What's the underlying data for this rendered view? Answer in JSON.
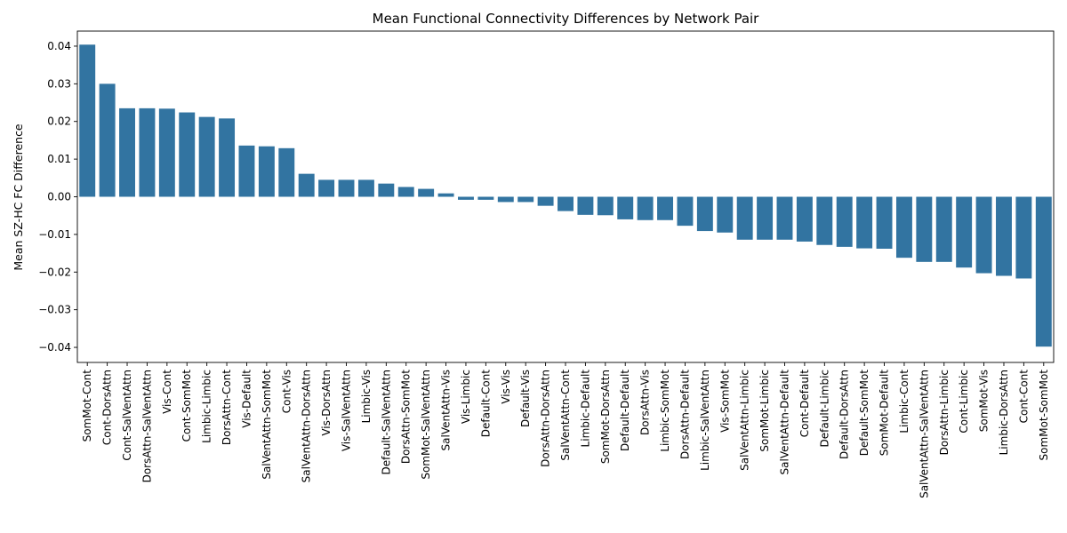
{
  "chart_data": {
    "type": "bar",
    "title": "Mean Functional Connectivity Differences by Network Pair",
    "xlabel": "",
    "ylabel": "Mean SZ-HC FC Difference",
    "ylim": [
      -0.044,
      0.044
    ],
    "yticks": [
      0.04,
      0.03,
      0.02,
      0.01,
      0.0,
      -0.01,
      -0.02,
      -0.03,
      -0.04
    ],
    "ytick_labels": [
      "0.04",
      "0.03",
      "0.02",
      "0.01",
      "0.00",
      "−0.01",
      "−0.02",
      "−0.03",
      "−0.04"
    ],
    "bar_color": "#3274a1",
    "grid": false,
    "categories": [
      "SomMot-Cont",
      "Cont-DorsAttn",
      "Cont-SalVentAttn",
      "DorsAttn-SalVentAttn",
      "Vis-Cont",
      "Cont-SomMot",
      "Limbic-Limbic",
      "DorsAttn-Cont",
      "Vis-Default",
      "SalVentAttn-SomMot",
      "Cont-Vis",
      "SalVentAttn-DorsAttn",
      "Vis-DorsAttn",
      "Vis-SalVentAttn",
      "Limbic-Vis",
      "Default-SalVentAttn",
      "DorsAttn-SomMot",
      "SomMot-SalVentAttn",
      "SalVentAttn-Vis",
      "Vis-Limbic",
      "Default-Cont",
      "Vis-Vis",
      "Default-Vis",
      "DorsAttn-DorsAttn",
      "SalVentAttn-Cont",
      "Limbic-Default",
      "SomMot-DorsAttn",
      "Default-Default",
      "DorsAttn-Vis",
      "Limbic-SomMot",
      "DorsAttn-Default",
      "Limbic-SalVentAttn",
      "Vis-SomMot",
      "SalVentAttn-Limbic",
      "SomMot-Limbic",
      "SalVentAttn-Default",
      "Cont-Default",
      "Default-Limbic",
      "Default-DorsAttn",
      "Default-SomMot",
      "SomMot-Default",
      "Limbic-Cont",
      "SalVentAttn-SalVentAttn",
      "DorsAttn-Limbic",
      "Cont-Limbic",
      "SomMot-Vis",
      "Limbic-DorsAttn",
      "Cont-Cont",
      "SomMot-SomMot"
    ],
    "values": [
      0.0404,
      0.03,
      0.0235,
      0.0235,
      0.0234,
      0.0224,
      0.0212,
      0.0208,
      0.0136,
      0.0134,
      0.0129,
      0.0061,
      0.0045,
      0.0045,
      0.0045,
      0.0035,
      0.0026,
      0.0021,
      0.0009,
      -0.0008,
      -0.0008,
      -0.0014,
      -0.0014,
      -0.0024,
      -0.0038,
      -0.0048,
      -0.0049,
      -0.006,
      -0.0062,
      -0.0062,
      -0.0077,
      -0.0091,
      -0.0095,
      -0.0114,
      -0.0114,
      -0.0114,
      -0.0119,
      -0.0128,
      -0.0133,
      -0.0137,
      -0.0138,
      -0.0162,
      -0.0173,
      -0.0173,
      -0.0188,
      -0.0203,
      -0.021,
      -0.0217,
      -0.0398
    ]
  }
}
